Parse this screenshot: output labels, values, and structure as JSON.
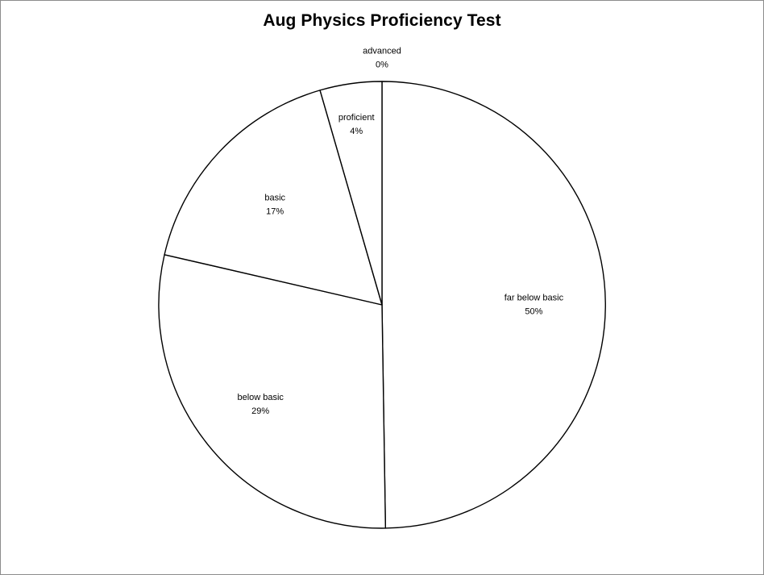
{
  "chart_data": {
    "type": "pie",
    "title": "Aug Physics Proficiency Test",
    "start": "12 o'clock",
    "direction": "clockwise",
    "slices": [
      {
        "name": "far below basic",
        "value": 50,
        "label": "far below basic",
        "pct": "50%"
      },
      {
        "name": "below basic",
        "value": 29,
        "label": "below basic",
        "pct": "29%"
      },
      {
        "name": "basic",
        "value": 17,
        "label": "basic",
        "pct": "17%"
      },
      {
        "name": "proficient",
        "value": 4.5,
        "label": "proficient",
        "pct": "4%"
      },
      {
        "name": "advanced",
        "value": 0,
        "label": "advanced",
        "pct": "0%"
      }
    ],
    "colors": {
      "fill": "#ffffff",
      "stroke": "#000000"
    },
    "legend": "none"
  }
}
